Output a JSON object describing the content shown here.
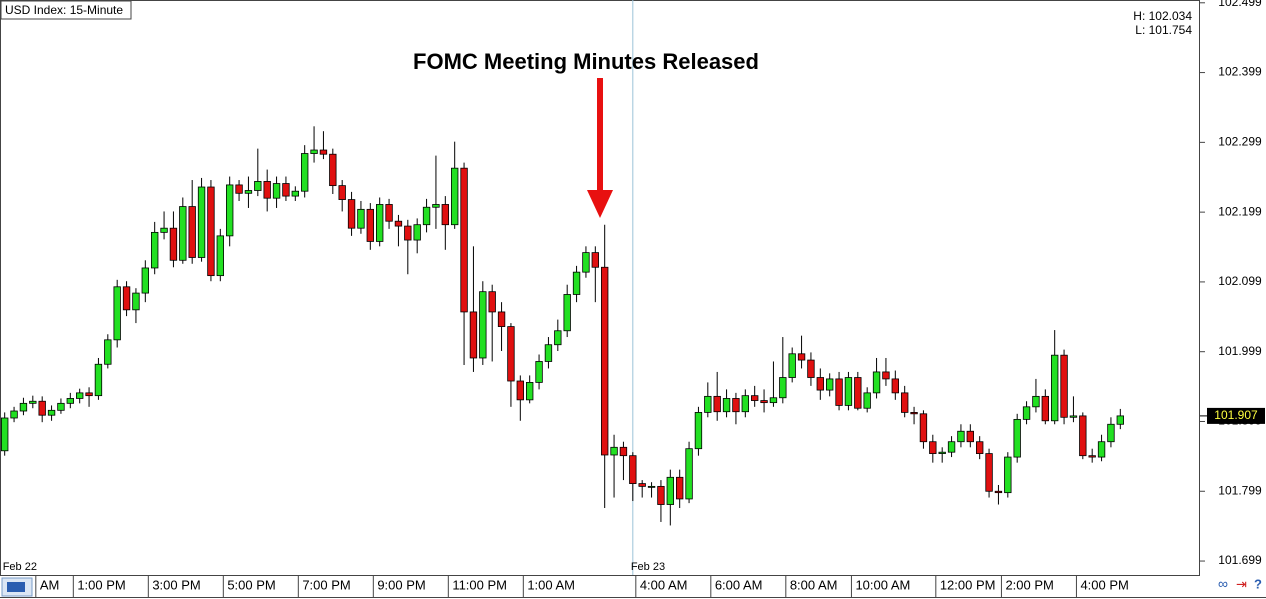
{
  "chart_data": {
    "type": "candlestick",
    "title": "USD Index: 15-Minute",
    "annotation": "FOMC Meeting Minutes Released",
    "high_label": "H: 102.034",
    "low_label": "L: 101.754",
    "last_price": 101.907,
    "up_color": "#22e022",
    "down_color": "#e01010",
    "ylim": [
      101.679,
      102.503
    ],
    "yticks": [
      101.699,
      101.799,
      101.899,
      101.999,
      102.099,
      102.199,
      102.299,
      102.399,
      102.499
    ],
    "categories": [
      null,
      null,
      null,
      "AM",
      null,
      null,
      null,
      "1:00 PM",
      null,
      null,
      null,
      null,
      null,
      null,
      null,
      "3:00 PM",
      null,
      null,
      null,
      null,
      null,
      null,
      null,
      "5:00 PM",
      null,
      null,
      null,
      null,
      null,
      null,
      null,
      "7:00 PM",
      null,
      null,
      null,
      null,
      null,
      null,
      null,
      "9:00 PM",
      null,
      null,
      null,
      null,
      null,
      null,
      null,
      "11:00 PM",
      null,
      null,
      null,
      null,
      null,
      null,
      null,
      "1:00 AM",
      null,
      null,
      null,
      null,
      null,
      null,
      null,
      null,
      null,
      null,
      null,
      "4:00 AM",
      null,
      null,
      null,
      null,
      null,
      null,
      null,
      "6:00 AM",
      null,
      null,
      null,
      null,
      null,
      null,
      null,
      "8:00 AM",
      null,
      null,
      null,
      null,
      null,
      null,
      "10:00 AM",
      null,
      null,
      null,
      null,
      null,
      null,
      null,
      null,
      "12:00 PM",
      null,
      null,
      null,
      null,
      null,
      null,
      "2:00 PM",
      null,
      null,
      null,
      null,
      null,
      null,
      null,
      "4:00 PM",
      null,
      null,
      null,
      null,
      null
    ],
    "dates": [
      "Feb 22",
      null,
      null,
      null,
      null,
      null,
      null,
      null,
      null,
      null,
      null,
      null,
      null,
      null,
      null,
      null,
      null,
      null,
      null,
      null,
      null,
      null,
      null,
      null,
      null,
      null,
      null,
      null,
      null,
      null,
      null,
      null,
      null,
      null,
      null,
      null,
      null,
      null,
      null,
      null,
      null,
      null,
      null,
      null,
      null,
      null,
      null,
      null,
      null,
      null,
      null,
      null,
      null,
      null,
      null,
      null,
      null,
      null,
      null,
      null,
      null,
      null,
      null,
      null,
      null,
      null,
      null,
      "Feb 23",
      null,
      null,
      null,
      null,
      null,
      null,
      null,
      null,
      null,
      null,
      null,
      null,
      null,
      null,
      null,
      null,
      null,
      null,
      null,
      null,
      null,
      null,
      null,
      null,
      null,
      null,
      null,
      null,
      null,
      null,
      null,
      null,
      null,
      null,
      null,
      null,
      null,
      null,
      null,
      null,
      null,
      null,
      null,
      null,
      null,
      null,
      null,
      null,
      null,
      null,
      null,
      null
    ],
    "open": [
      101.857,
      101.904,
      101.914,
      101.925,
      101.928,
      101.908,
      101.915,
      101.925,
      101.932,
      101.94,
      101.936,
      101.981,
      102.016,
      102.092,
      102.059,
      102.083,
      102.119,
      102.17,
      102.176,
      102.13,
      102.207,
      102.134,
      102.235,
      102.108,
      102.165,
      102.238,
      102.226,
      102.23,
      102.243,
      102.219,
      102.24,
      102.222,
      102.229,
      102.283,
      102.288,
      102.282,
      102.237,
      102.217,
      102.176,
      102.203,
      102.157,
      102.21,
      102.186,
      102.179,
      102.159,
      102.181,
      102.206,
      102.21,
      102.181,
      102.262,
      102.056,
      101.99,
      102.085,
      102.056,
      102.035,
      101.957,
      101.93,
      101.955,
      101.985,
      102.009,
      102.029,
      102.081,
      102.113,
      102.141,
      102.12,
      101.851,
      101.862,
      101.85,
      101.81,
      101.806,
      101.806,
      101.78,
      101.819,
      101.788,
      101.86,
      101.912,
      101.935,
      101.913,
      101.932,
      101.913,
      101.936,
      101.929,
      101.926,
      101.933,
      101.962,
      101.996,
      101.987,
      101.962,
      101.944,
      101.96,
      101.922,
      101.962,
      101.918,
      101.94,
      101.97,
      101.96,
      101.94,
      101.912,
      101.91,
      101.87,
      101.853,
      101.855,
      101.87,
      101.885,
      101.87,
      101.853,
      101.799,
      101.797,
      101.848,
      101.902,
      101.92,
      101.935,
      101.9,
      101.994,
      101.905,
      101.907,
      101.85,
      101.848,
      101.87,
      101.895
    ],
    "high": [
      101.912,
      101.92,
      101.933,
      101.936,
      101.935,
      101.922,
      101.932,
      101.94,
      101.946,
      101.948,
      101.99,
      102.024,
      102.102,
      102.1,
      102.09,
      102.13,
      102.185,
      102.2,
      102.2,
      102.22,
      102.245,
      102.248,
      102.245,
      102.175,
      102.25,
      102.245,
      102.25,
      102.29,
      102.26,
      102.25,
      102.25,
      102.236,
      102.295,
      102.322,
      102.315,
      102.29,
      102.245,
      102.228,
      102.215,
      102.212,
      102.22,
      102.218,
      102.195,
      102.188,
      102.19,
      102.218,
      102.28,
      102.222,
      102.3,
      102.27,
      102.15,
      102.1,
      102.095,
      102.07,
      102.04,
      101.965,
      101.965,
      101.995,
      102.02,
      102.045,
      102.095,
      102.122,
      102.15,
      102.15,
      102.181,
      101.88,
      101.87,
      101.855,
      101.815,
      101.812,
      101.815,
      101.83,
      101.83,
      101.87,
      101.92,
      101.955,
      101.97,
      101.945,
      101.94,
      101.945,
      101.95,
      101.945,
      101.985,
      102.02,
      102.005,
      102.022,
      101.998,
      101.975,
      101.968,
      101.97,
      101.97,
      101.97,
      101.948,
      101.99,
      101.99,
      101.972,
      101.95,
      101.92,
      101.915,
      101.88,
      101.862,
      101.878,
      101.895,
      101.895,
      101.878,
      101.86,
      101.808,
      101.855,
      101.91,
      101.928,
      101.96,
      101.945,
      102.03,
      102.002,
      101.935,
      101.912,
      101.86,
      101.88,
      101.905,
      101.917
    ],
    "low": [
      101.85,
      101.898,
      101.908,
      101.918,
      101.898,
      101.9,
      101.91,
      101.918,
      101.925,
      101.92,
      101.93,
      101.975,
      102.005,
      102.05,
      102.04,
      102.07,
      102.11,
      102.16,
      102.12,
      102.125,
      102.125,
      102.128,
      102.1,
      102.1,
      102.15,
      102.215,
      102.205,
      102.222,
      102.2,
      102.205,
      102.215,
      102.215,
      102.22,
      102.27,
      102.275,
      102.225,
      102.2,
      102.165,
      102.168,
      102.145,
      102.15,
      102.175,
      102.15,
      102.11,
      102.14,
      102.17,
      102.175,
      102.145,
      102.175,
      101.98,
      101.97,
      101.98,
      101.985,
      102.0,
      101.92,
      101.9,
      101.925,
      101.945,
      101.975,
      102.0,
      102.02,
      102.07,
      102.105,
      102.07,
      101.775,
      101.79,
      101.815,
      101.785,
      101.79,
      101.79,
      101.755,
      101.75,
      101.775,
      101.782,
      101.85,
      101.905,
      101.9,
      101.905,
      101.895,
      101.905,
      101.92,
      101.912,
      101.92,
      101.925,
      101.955,
      101.975,
      101.95,
      101.93,
      101.935,
      101.915,
      101.915,
      101.915,
      101.912,
      101.932,
      101.95,
      101.93,
      101.905,
      101.895,
      101.86,
      101.84,
      101.84,
      101.848,
      101.862,
      101.862,
      101.845,
      101.79,
      101.78,
      101.79,
      101.84,
      101.895,
      101.912,
      101.895,
      101.895,
      101.895,
      101.898,
      101.845,
      101.84,
      101.842,
      101.862,
      101.888
    ],
    "close": [
      101.904,
      101.914,
      101.925,
      101.928,
      101.908,
      101.915,
      101.925,
      101.932,
      101.94,
      101.936,
      101.981,
      102.016,
      102.092,
      102.059,
      102.083,
      102.119,
      102.17,
      102.176,
      102.13,
      102.207,
      102.134,
      102.235,
      102.108,
      102.165,
      102.238,
      102.226,
      102.23,
      102.243,
      102.219,
      102.24,
      102.222,
      102.229,
      102.283,
      102.288,
      102.282,
      102.237,
      102.217,
      102.176,
      102.203,
      102.157,
      102.21,
      102.186,
      102.179,
      102.159,
      102.181,
      102.206,
      102.21,
      102.181,
      102.262,
      102.056,
      101.99,
      102.085,
      102.056,
      102.035,
      101.957,
      101.93,
      101.955,
      101.985,
      102.009,
      102.029,
      102.081,
      102.113,
      102.141,
      102.12,
      101.851,
      101.862,
      101.85,
      101.81,
      101.806,
      101.806,
      101.78,
      101.819,
      101.788,
      101.86,
      101.912,
      101.935,
      101.913,
      101.932,
      101.913,
      101.936,
      101.929,
      101.926,
      101.933,
      101.962,
      101.996,
      101.987,
      101.962,
      101.944,
      101.96,
      101.922,
      101.962,
      101.918,
      101.94,
      101.97,
      101.96,
      101.94,
      101.912,
      101.91,
      101.87,
      101.853,
      101.855,
      101.87,
      101.885,
      101.87,
      101.853,
      101.799,
      101.797,
      101.848,
      101.902,
      101.92,
      101.935,
      101.9,
      101.994,
      101.905,
      101.907,
      101.85,
      101.848,
      101.87,
      101.895,
      101.907
    ]
  }
}
